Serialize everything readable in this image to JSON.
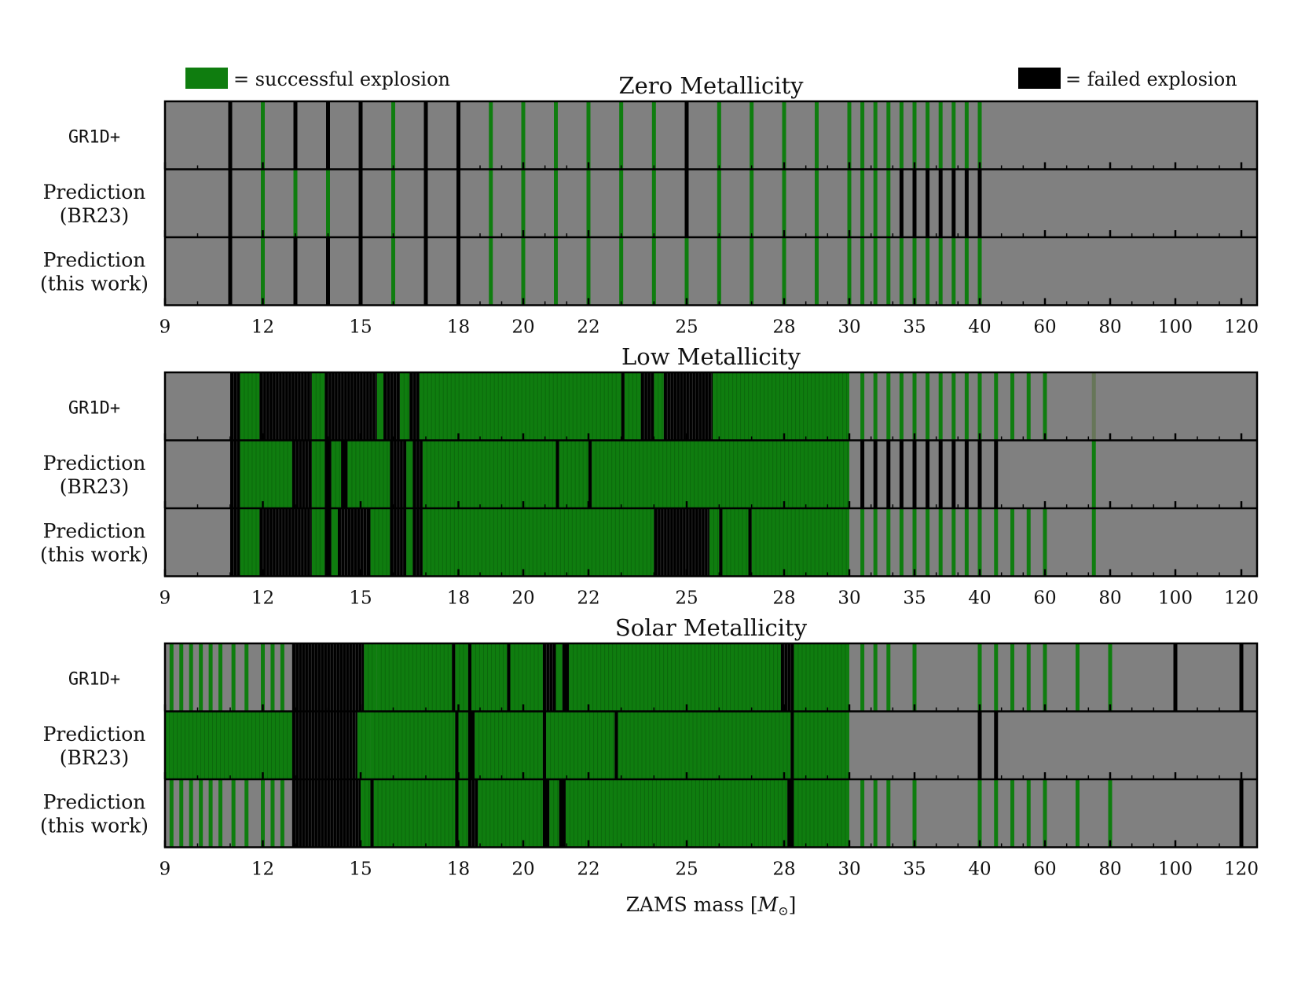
{
  "legend": {
    "success_label": "= successful explosion",
    "fail_label": "= failed explosion",
    "success_color": "#0f7d0f",
    "fail_color": "#000000"
  },
  "xlabel": "ZAMS mass [M⊙]",
  "row_labels": [
    [
      "GR1D+"
    ],
    [
      "Prediction",
      "(BR23)"
    ],
    [
      "Prediction",
      "(this work)"
    ]
  ],
  "colors": {
    "background": "#808080",
    "success": "#0f7d0f",
    "fail": "#000000"
  },
  "chart_data": [
    {
      "type": "bar",
      "title": "Zero Metallicity",
      "x_ticks": [
        "9",
        "12",
        "15",
        "18",
        "20",
        "22",
        "25",
        "28",
        "30",
        "35",
        "40",
        "60",
        "80",
        "100",
        "120"
      ],
      "rows": [
        {
          "name": "GR1D+",
          "fail": [
            11,
            13,
            14,
            15,
            17,
            18,
            25
          ],
          "success": [
            12,
            16,
            19,
            20,
            21,
            22,
            23,
            24,
            26,
            27,
            28,
            29,
            30,
            31,
            32,
            33,
            34,
            35,
            36,
            37,
            38,
            39,
            40
          ]
        },
        {
          "name": "Prediction (BR23)",
          "fail": [
            11,
            15,
            17,
            18,
            25,
            34,
            35,
            36,
            37,
            38,
            39,
            40
          ],
          "success": [
            12,
            13,
            14,
            16,
            19,
            20,
            21,
            22,
            23,
            24,
            26,
            27,
            28,
            29,
            30,
            31,
            32,
            33
          ]
        },
        {
          "name": "Prediction (this work)",
          "fail": [
            11,
            13,
            14,
            15,
            17,
            18
          ],
          "success": [
            12,
            16,
            19,
            20,
            21,
            22,
            23,
            24,
            25,
            26,
            27,
            28,
            29,
            30,
            31,
            32,
            33,
            34,
            35,
            36,
            37,
            38,
            39,
            40
          ]
        }
      ]
    },
    {
      "type": "bar",
      "title": "Low Metallicity",
      "x_ticks": [
        "9",
        "12",
        "15",
        "18",
        "20",
        "22",
        "25",
        "28",
        "30",
        "35",
        "40",
        "60",
        "80",
        "100",
        "120"
      ],
      "rows": [
        {
          "name": "GR1D+",
          "fail": [
            [
              11,
              11.3
            ],
            [
              11.9,
              13.5
            ],
            [
              13.9,
              15.5
            ],
            [
              15.7,
              16.2
            ],
            [
              16.5,
              16.8
            ],
            [
              23.0,
              23.1
            ],
            [
              23.6,
              24.0
            ],
            [
              24.3,
              25.8
            ]
          ],
          "success": [
            [
              11.3,
              11.9
            ],
            [
              13.5,
              13.9
            ],
            [
              15.5,
              15.7
            ],
            [
              16.2,
              16.5
            ],
            [
              16.8,
              23.0
            ],
            [
              23.1,
              23.6
            ],
            [
              24.0,
              24.3
            ],
            [
              25.8,
              30.0
            ],
            31,
            32,
            33,
            34,
            35,
            36,
            37,
            38,
            39,
            40,
            45,
            50,
            55,
            60
          ],
          "partial": [
            75
          ]
        },
        {
          "name": "Prediction (BR23)",
          "fail": [
            [
              11,
              11.3
            ],
            [
              12.9,
              13.5
            ],
            [
              13.9,
              14.1
            ],
            [
              14.4,
              14.6
            ],
            [
              15.9,
              16.4
            ],
            [
              16.6,
              16.9
            ],
            [
              21.0,
              21.1
            ],
            [
              22.0,
              22.1
            ],
            31,
            32,
            33,
            34,
            35,
            36,
            37,
            38,
            39,
            40,
            45
          ],
          "success": [
            [
              11.3,
              12.9
            ],
            [
              13.5,
              13.9
            ],
            [
              14.1,
              14.4
            ],
            [
              14.6,
              15.9
            ],
            [
              16.4,
              16.6
            ],
            [
              16.9,
              21.0
            ],
            [
              21.1,
              22.0
            ],
            [
              22.1,
              30.0
            ],
            75
          ]
        },
        {
          "name": "Prediction (this work)",
          "fail": [
            [
              11,
              11.3
            ],
            [
              11.9,
              13.5
            ],
            [
              13.9,
              14.1
            ],
            [
              14.3,
              15.3
            ],
            [
              15.9,
              16.4
            ],
            [
              16.6,
              16.9
            ],
            [
              24.0,
              25.7
            ],
            [
              26.0,
              26.1
            ],
            [
              26.9,
              27.0
            ]
          ],
          "success": [
            [
              11.3,
              11.9
            ],
            [
              13.5,
              13.9
            ],
            [
              14.1,
              14.3
            ],
            [
              15.3,
              15.9
            ],
            [
              16.4,
              16.6
            ],
            [
              16.9,
              24.0
            ],
            [
              25.7,
              26.0
            ],
            [
              26.1,
              26.9
            ],
            [
              27.0,
              30.0
            ],
            31,
            32,
            33,
            34,
            35,
            36,
            37,
            38,
            39,
            40,
            45,
            50,
            55,
            60,
            75
          ]
        }
      ]
    },
    {
      "type": "bar",
      "title": "Solar Metallicity",
      "x_ticks": [
        "9",
        "12",
        "15",
        "18",
        "20",
        "22",
        "25",
        "28",
        "30",
        "35",
        "40",
        "60",
        "80",
        "100",
        "120"
      ],
      "rows": [
        {
          "name": "GR1D+",
          "fail": [
            [
              12.9,
              15.1
            ],
            [
              17.8,
              17.9
            ],
            [
              18.3,
              18.4
            ],
            [
              19.5,
              19.6
            ],
            [
              20.6,
              21.0
            ],
            [
              21.2,
              21.4
            ],
            [
              27.9,
              28.3
            ],
            100,
            120
          ],
          "success": [
            9.2,
            9.5,
            9.8,
            10.1,
            10.4,
            10.7,
            11.1,
            11.5,
            12.0,
            12.3,
            12.6,
            [
              15.1,
              15.5
            ],
            [
              15.5,
              17.8
            ],
            [
              17.9,
              18.3
            ],
            [
              18.4,
              19.5
            ],
            [
              19.6,
              20.6
            ],
            [
              21.0,
              21.2
            ],
            [
              21.4,
              27.9
            ],
            [
              28.3,
              30.0
            ],
            31,
            32,
            33,
            35,
            40,
            45,
            50,
            55,
            60,
            70,
            80
          ]
        },
        {
          "name": "Prediction (BR23)",
          "fail": [
            [
              12.9,
              14.9
            ],
            [
              17.9,
              18.0
            ],
            [
              18.3,
              18.5
            ],
            [
              20.6,
              20.7
            ],
            [
              22.8,
              22.9
            ],
            [
              28.2,
              28.3
            ],
            40,
            45
          ],
          "success": [
            [
              9,
              12.9
            ],
            [
              14.9,
              15.3
            ],
            [
              15.3,
              17.9
            ],
            [
              18.0,
              18.3
            ],
            [
              18.5,
              20.6
            ],
            [
              20.7,
              22.8
            ],
            [
              22.9,
              28.2
            ],
            [
              28.3,
              30.0
            ]
          ]
        },
        {
          "name": "Prediction (this work)",
          "fail": [
            [
              12.9,
              15.0
            ],
            [
              15.3,
              15.4
            ],
            [
              17.9,
              18.0
            ],
            [
              18.3,
              18.6
            ],
            [
              20.6,
              20.8
            ],
            [
              21.1,
              21.3
            ],
            [
              28.1,
              28.3
            ],
            120
          ],
          "success": [
            9.2,
            9.5,
            9.8,
            10.1,
            10.4,
            10.7,
            11.1,
            11.5,
            12.0,
            12.3,
            12.6,
            [
              15.0,
              15.3
            ],
            [
              15.4,
              17.9
            ],
            [
              18.0,
              18.3
            ],
            [
              18.6,
              20.6
            ],
            [
              20.8,
              21.1
            ],
            [
              21.3,
              28.1
            ],
            [
              28.3,
              30.0
            ],
            31,
            32,
            33,
            35,
            40,
            45,
            50,
            55,
            60,
            70,
            80
          ]
        }
      ]
    }
  ]
}
